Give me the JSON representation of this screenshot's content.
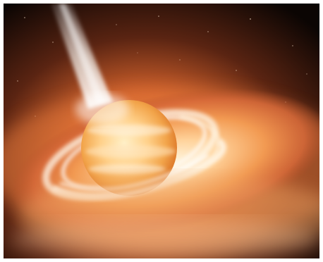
{
  "image": {
    "palette": {
      "space": "#1a0d07",
      "space_deep": "#0b0503",
      "glow": "#ff8c2b",
      "disk_hot": "#fff3d6",
      "disk_warm": "#f5a24c",
      "disk_outer": "#c8572a",
      "star_core": "#ffd79a",
      "jet": "#e8e2da",
      "background": "#ffffff"
    }
  }
}
